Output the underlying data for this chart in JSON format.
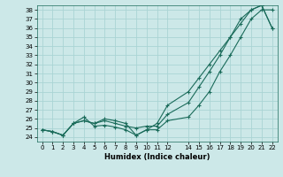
{
  "xlabel": "Humidex (Indice chaleur)",
  "background_color": "#cce8e8",
  "grid_color": "#aad4d4",
  "line_color": "#1a6b5a",
  "marker": "+",
  "xlim": [
    -0.5,
    22.5
  ],
  "ylim": [
    23.5,
    38.5
  ],
  "xticks": [
    0,
    1,
    2,
    3,
    4,
    5,
    6,
    7,
    8,
    9,
    10,
    11,
    12,
    14,
    15,
    16,
    17,
    18,
    19,
    20,
    21,
    22
  ],
  "yticks": [
    24,
    25,
    26,
    27,
    28,
    29,
    30,
    31,
    32,
    33,
    34,
    35,
    36,
    37,
    38
  ],
  "line1_x": [
    0,
    1,
    2,
    3,
    4,
    5,
    6,
    7,
    8,
    9,
    10,
    11,
    12,
    14,
    15,
    16,
    17,
    18,
    19,
    20,
    21,
    22
  ],
  "line1_y": [
    24.8,
    24.6,
    24.2,
    25.5,
    26.2,
    25.2,
    25.3,
    25.1,
    24.8,
    24.2,
    24.8,
    24.8,
    25.8,
    26.2,
    27.5,
    29.0,
    31.2,
    33.0,
    35.0,
    37.0,
    38.0,
    38.0
  ],
  "line2_x": [
    0,
    1,
    2,
    3,
    4,
    5,
    6,
    7,
    8,
    9,
    10,
    11,
    12,
    14,
    15,
    16,
    17,
    18,
    19,
    20,
    21,
    22
  ],
  "line2_y": [
    24.8,
    24.6,
    24.2,
    25.5,
    25.8,
    25.5,
    26.0,
    25.8,
    25.5,
    24.2,
    24.8,
    25.5,
    27.5,
    29.0,
    30.5,
    32.0,
    33.5,
    35.0,
    36.5,
    38.0,
    38.5,
    36.0
  ],
  "line3_x": [
    0,
    1,
    2,
    3,
    4,
    5,
    6,
    7,
    8,
    9,
    10,
    11,
    12,
    14,
    15,
    16,
    17,
    18,
    19,
    20,
    21,
    22
  ],
  "line3_y": [
    24.8,
    24.6,
    24.2,
    25.5,
    25.8,
    25.5,
    25.8,
    25.5,
    25.2,
    25.0,
    25.2,
    25.2,
    26.5,
    27.8,
    29.5,
    31.2,
    33.0,
    35.0,
    37.0,
    38.0,
    38.5,
    36.0
  ]
}
